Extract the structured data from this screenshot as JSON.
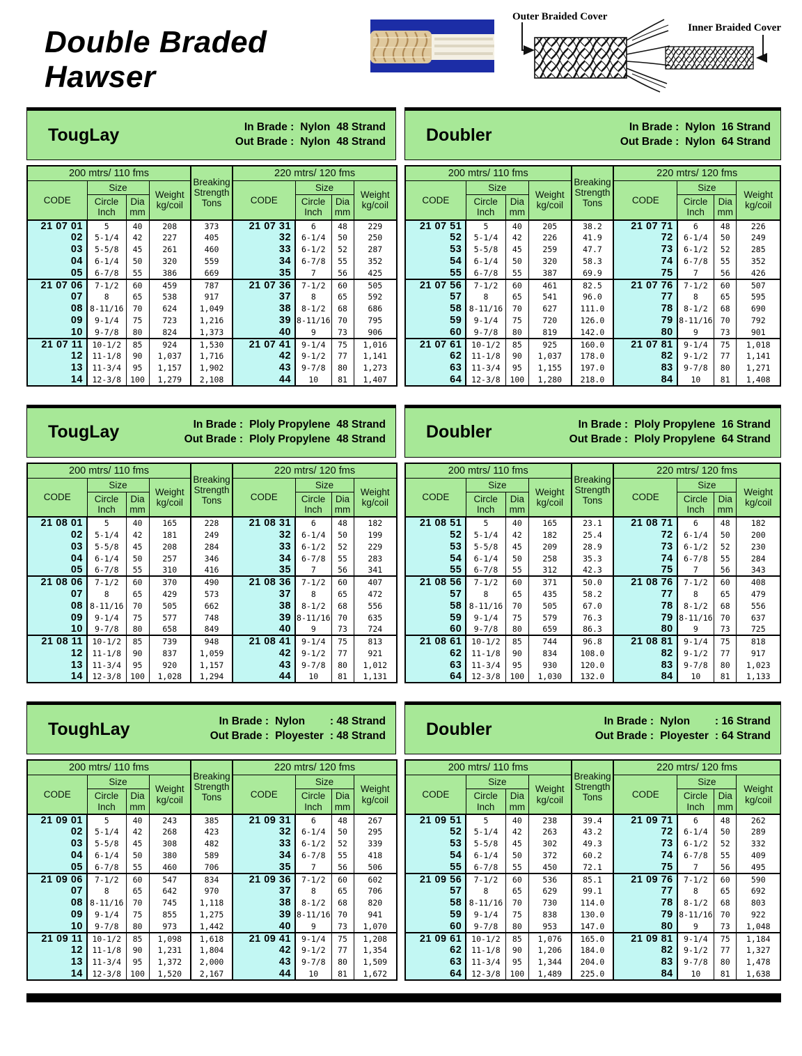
{
  "page_title": "Double Braded Hawser",
  "hero": {
    "outer_label": "Outer Braided Cover",
    "inner_label": "Inner Braided Cover"
  },
  "colors": {
    "band_green": "#a7e897",
    "cell_green": "#abea9b",
    "code_cyan": "#c2f7f3",
    "photo_blue": "#1c2da6"
  },
  "column_headers": {
    "span_200": "200 mtrs/ 110 fms",
    "span_220": "220 mtrs/ 120 fms",
    "code": "CODE",
    "size": "Size",
    "circle_inch": "Circle Inch",
    "dia_mm": "Dia mm",
    "weight": "Weight kg/coil",
    "breaking": "Breaking Strength Tons"
  },
  "row_columns": [
    "code",
    "circle_inch",
    "dia_mm",
    "weight_kg_coil",
    "breaking_strength_tons",
    "code",
    "circle_inch",
    "dia_mm",
    "weight_kg_coil"
  ],
  "tables": [
    {
      "title": "TougLay",
      "in_label": "In Brade :",
      "in_material": "Nylon",
      "in_strand": "48 Strand",
      "out_label": "Out Brade :",
      "out_material": "Nylon",
      "out_strand": "48 Strand",
      "rows": [
        [
          "21 07 01",
          "5",
          "40",
          "208",
          "373",
          "21 07 31",
          "6",
          "48",
          "229"
        ],
        [
          "02",
          "5-1/4",
          "42",
          "227",
          "405",
          "32",
          "6-1/4",
          "50",
          "250"
        ],
        [
          "03",
          "5-5/8",
          "45",
          "261",
          "460",
          "33",
          "6-1/2",
          "52",
          "287"
        ],
        [
          "04",
          "6-1/4",
          "50",
          "320",
          "559",
          "34",
          "6-7/8",
          "55",
          "352"
        ],
        [
          "05",
          "6-7/8",
          "55",
          "386",
          "669",
          "35",
          "7",
          "56",
          "425"
        ],
        [
          "21 07 06",
          "7-1/2",
          "60",
          "459",
          "787",
          "21 07 36",
          "7-1/2",
          "60",
          "505"
        ],
        [
          "07",
          "8",
          "65",
          "538",
          "917",
          "37",
          "8",
          "65",
          "592"
        ],
        [
          "08",
          "8-11/16",
          "70",
          "624",
          "1,049",
          "38",
          "8-1/2",
          "68",
          "686"
        ],
        [
          "09",
          "9-1/4",
          "75",
          "723",
          "1,216",
          "39",
          "8-11/16",
          "70",
          "795"
        ],
        [
          "10",
          "9-7/8",
          "80",
          "824",
          "1,373",
          "40",
          "9",
          "73",
          "906"
        ],
        [
          "21 07 11",
          "10-1/2",
          "85",
          "924",
          "1,530",
          "21 07 41",
          "9-1/4",
          "75",
          "1,016"
        ],
        [
          "12",
          "11-1/8",
          "90",
          "1,037",
          "1,716",
          "42",
          "9-1/2",
          "77",
          "1,141"
        ],
        [
          "13",
          "11-3/4",
          "95",
          "1,157",
          "1,902",
          "43",
          "9-7/8",
          "80",
          "1,273"
        ],
        [
          "14",
          "12-3/8",
          "100",
          "1,279",
          "2,108",
          "44",
          "10",
          "81",
          "1,407"
        ]
      ]
    },
    {
      "title": "Doubler",
      "in_label": "In Brade :",
      "in_material": "Nylon",
      "in_strand": "16 Strand",
      "out_label": "Out Brade :",
      "out_material": "Nylon",
      "out_strand": "64 Strand",
      "rows": [
        [
          "21 07 51",
          "5",
          "40",
          "205",
          "38.2",
          "21 07 71",
          "6",
          "48",
          "226"
        ],
        [
          "52",
          "5-1/4",
          "42",
          "226",
          "41.9",
          "72",
          "6-1/4",
          "50",
          "249"
        ],
        [
          "53",
          "5-5/8",
          "45",
          "259",
          "47.7",
          "73",
          "6-1/2",
          "52",
          "285"
        ],
        [
          "54",
          "6-1/4",
          "50",
          "320",
          "58.3",
          "74",
          "6-7/8",
          "55",
          "352"
        ],
        [
          "55",
          "6-7/8",
          "55",
          "387",
          "69.9",
          "75",
          "7",
          "56",
          "426"
        ],
        [
          "21 07 56",
          "7-1/2",
          "60",
          "461",
          "82.5",
          "21 07 76",
          "7-1/2",
          "60",
          "507"
        ],
        [
          "57",
          "8",
          "65",
          "541",
          "96.0",
          "77",
          "8",
          "65",
          "595"
        ],
        [
          "58",
          "8-11/16",
          "70",
          "627",
          "111.0",
          "78",
          "8-1/2",
          "68",
          "690"
        ],
        [
          "59",
          "9-1/4",
          "75",
          "720",
          "126.0",
          "79",
          "8-11/16",
          "70",
          "792"
        ],
        [
          "60",
          "9-7/8",
          "80",
          "819",
          "142.0",
          "80",
          "9",
          "73",
          "901"
        ],
        [
          "21 07 61",
          "10-1/2",
          "85",
          "925",
          "160.0",
          "21 07 81",
          "9-1/4",
          "75",
          "1,018"
        ],
        [
          "62",
          "11-1/8",
          "90",
          "1,037",
          "178.0",
          "82",
          "9-1/2",
          "77",
          "1,141"
        ],
        [
          "63",
          "11-3/4",
          "95",
          "1,155",
          "197.0",
          "83",
          "9-7/8",
          "80",
          "1,271"
        ],
        [
          "64",
          "12-3/8",
          "100",
          "1,280",
          "218.0",
          "84",
          "10",
          "81",
          "1,408"
        ]
      ]
    },
    {
      "title": "TougLay",
      "in_label": "In Brade :",
      "in_material": "Ploly Propylene",
      "in_strand": "48 Strand",
      "out_label": "Out Brade :",
      "out_material": "Ploly Propylene",
      "out_strand": "48 Strand",
      "rows": [
        [
          "21 08 01",
          "5",
          "40",
          "165",
          "228",
          "21 08 31",
          "6",
          "48",
          "182"
        ],
        [
          "02",
          "5-1/4",
          "42",
          "181",
          "249",
          "32",
          "6-1/4",
          "50",
          "199"
        ],
        [
          "03",
          "5-5/8",
          "45",
          "208",
          "284",
          "33",
          "6-1/2",
          "52",
          "229"
        ],
        [
          "04",
          "6-1/4",
          "50",
          "257",
          "346",
          "34",
          "6-7/8",
          "55",
          "283"
        ],
        [
          "05",
          "6-7/8",
          "55",
          "310",
          "416",
          "35",
          "7",
          "56",
          "341"
        ],
        [
          "21 08 06",
          "7-1/2",
          "60",
          "370",
          "490",
          "21 08 36",
          "7-1/2",
          "60",
          "407"
        ],
        [
          "07",
          "8",
          "65",
          "429",
          "573",
          "37",
          "8",
          "65",
          "472"
        ],
        [
          "08",
          "8-11/16",
          "70",
          "505",
          "662",
          "38",
          "8-1/2",
          "68",
          "556"
        ],
        [
          "09",
          "9-1/4",
          "75",
          "577",
          "748",
          "39",
          "8-11/16",
          "70",
          "635"
        ],
        [
          "10",
          "9-7/8",
          "80",
          "658",
          "849",
          "40",
          "9",
          "73",
          "724"
        ],
        [
          "21 08 11",
          "10-1/2",
          "85",
          "739",
          "948",
          "21 08 41",
          "9-1/4",
          "75",
          "813"
        ],
        [
          "12",
          "11-1/8",
          "90",
          "837",
          "1,059",
          "42",
          "9-1/2",
          "77",
          "921"
        ],
        [
          "13",
          "11-3/4",
          "95",
          "920",
          "1,157",
          "43",
          "9-7/8",
          "80",
          "1,012"
        ],
        [
          "14",
          "12-3/8",
          "100",
          "1,028",
          "1,294",
          "44",
          "10",
          "81",
          "1,131"
        ]
      ]
    },
    {
      "title": "Doubler",
      "in_label": "In Brade :",
      "in_material": "Ploly Propylene",
      "in_strand": "16 Strand",
      "out_label": "Out Brade :",
      "out_material": "Ploly Propylene",
      "out_strand": "64 Strand",
      "rows": [
        [
          "21 08 51",
          "5",
          "40",
          "165",
          "23.1",
          "21 08 71",
          "6",
          "48",
          "182"
        ],
        [
          "52",
          "5-1/4",
          "42",
          "182",
          "25.4",
          "72",
          "6-1/4",
          "50",
          "200"
        ],
        [
          "53",
          "5-5/8",
          "45",
          "209",
          "28.9",
          "73",
          "6-1/2",
          "52",
          "230"
        ],
        [
          "54",
          "6-1/4",
          "50",
          "258",
          "35.3",
          "74",
          "6-7/8",
          "55",
          "284"
        ],
        [
          "55",
          "6-7/8",
          "55",
          "312",
          "42.3",
          "75",
          "7",
          "56",
          "343"
        ],
        [
          "21 08 56",
          "7-1/2",
          "60",
          "371",
          "50.0",
          "21 08 76",
          "7-1/2",
          "60",
          "408"
        ],
        [
          "57",
          "8",
          "65",
          "435",
          "58.2",
          "77",
          "8",
          "65",
          "479"
        ],
        [
          "58",
          "8-11/16",
          "70",
          "505",
          "67.0",
          "78",
          "8-1/2",
          "68",
          "556"
        ],
        [
          "59",
          "9-1/4",
          "75",
          "579",
          "76.3",
          "79",
          "8-11/16",
          "70",
          "637"
        ],
        [
          "60",
          "9-7/8",
          "80",
          "659",
          "86.3",
          "80",
          "9",
          "73",
          "725"
        ],
        [
          "21 08 61",
          "10-1/2",
          "85",
          "744",
          "96.8",
          "21 08 81",
          "9-1/4",
          "75",
          "818"
        ],
        [
          "62",
          "11-1/8",
          "90",
          "834",
          "108.0",
          "82",
          "9-1/2",
          "77",
          "917"
        ],
        [
          "63",
          "11-3/4",
          "95",
          "930",
          "120.0",
          "83",
          "9-7/8",
          "80",
          "1,023"
        ],
        [
          "64",
          "12-3/8",
          "100",
          "1,030",
          "132.0",
          "84",
          "10",
          "81",
          "1,133"
        ]
      ]
    },
    {
      "title": "ToughLay",
      "in_label": "In Brade :",
      "in_material": "Nylon",
      "in_strand": ": 48 Strand",
      "out_label": "Out Brade :",
      "out_material": "Ployester",
      "out_strand": ": 48 Strand",
      "rows": [
        [
          "21 09 01",
          "5",
          "40",
          "243",
          "385",
          "21 09 31",
          "6",
          "48",
          "267"
        ],
        [
          "02",
          "5-1/4",
          "42",
          "268",
          "423",
          "32",
          "6-1/4",
          "50",
          "295"
        ],
        [
          "03",
          "5-5/8",
          "45",
          "308",
          "482",
          "33",
          "6-1/2",
          "52",
          "339"
        ],
        [
          "04",
          "6-1/4",
          "50",
          "380",
          "589",
          "34",
          "6-7/8",
          "55",
          "418"
        ],
        [
          "05",
          "6-7/8",
          "55",
          "460",
          "706",
          "35",
          "7",
          "56",
          "506"
        ],
        [
          "21 09 06",
          "7-1/2",
          "60",
          "547",
          "834",
          "21 09 36",
          "7-1/2",
          "60",
          "602"
        ],
        [
          "07",
          "8",
          "65",
          "642",
          "970",
          "37",
          "8",
          "65",
          "706"
        ],
        [
          "08",
          "8-11/16",
          "70",
          "745",
          "1,118",
          "38",
          "8-1/2",
          "68",
          "820"
        ],
        [
          "09",
          "9-1/4",
          "75",
          "855",
          "1,275",
          "39",
          "8-11/16",
          "70",
          "941"
        ],
        [
          "10",
          "9-7/8",
          "80",
          "973",
          "1,442",
          "40",
          "9",
          "73",
          "1,070"
        ],
        [
          "21 09 11",
          "10-1/2",
          "85",
          "1,098",
          "1,618",
          "21 09 41",
          "9-1/4",
          "75",
          "1,208"
        ],
        [
          "12",
          "11-1/8",
          "90",
          "1,231",
          "1,804",
          "42",
          "9-1/2",
          "77",
          "1,354"
        ],
        [
          "13",
          "11-3/4",
          "95",
          "1,372",
          "2,000",
          "43",
          "9-7/8",
          "80",
          "1,509"
        ],
        [
          "14",
          "12-3/8",
          "100",
          "1,520",
          "2,167",
          "44",
          "10",
          "81",
          "1,672"
        ]
      ]
    },
    {
      "title": "Doubler",
      "in_label": "In Brade :",
      "in_material": "Nylon",
      "in_strand": ": 16 Strand",
      "out_label": "Out Brade :",
      "out_material": "Ployester",
      "out_strand": ": 64 Strand",
      "rows": [
        [
          "21 09 51",
          "5",
          "40",
          "238",
          "39.4",
          "21 09 71",
          "6",
          "48",
          "262"
        ],
        [
          "52",
          "5-1/4",
          "42",
          "263",
          "43.2",
          "72",
          "6-1/4",
          "50",
          "289"
        ],
        [
          "53",
          "5-5/8",
          "45",
          "302",
          "49.3",
          "73",
          "6-1/2",
          "52",
          "332"
        ],
        [
          "54",
          "6-1/4",
          "50",
          "372",
          "60.2",
          "74",
          "6-7/8",
          "55",
          "409"
        ],
        [
          "55",
          "6-7/8",
          "55",
          "450",
          "72.1",
          "75",
          "7",
          "56",
          "495"
        ],
        [
          "21 09 56",
          "7-1/2",
          "60",
          "536",
          "85.1",
          "21 09 76",
          "7-1/2",
          "60",
          "590"
        ],
        [
          "57",
          "8",
          "65",
          "629",
          "99.1",
          "77",
          "8",
          "65",
          "692"
        ],
        [
          "58",
          "8-11/16",
          "70",
          "730",
          "114.0",
          "78",
          "8-1/2",
          "68",
          "803"
        ],
        [
          "59",
          "9-1/4",
          "75",
          "838",
          "130.0",
          "79",
          "8-11/16",
          "70",
          "922"
        ],
        [
          "60",
          "9-7/8",
          "80",
          "953",
          "147.0",
          "80",
          "9",
          "73",
          "1,048"
        ],
        [
          "21 09 61",
          "10-1/2",
          "85",
          "1,076",
          "165.0",
          "21 09 81",
          "9-1/4",
          "75",
          "1,184"
        ],
        [
          "62",
          "11-1/8",
          "90",
          "1,206",
          "184.0",
          "82",
          "9-1/2",
          "77",
          "1,327"
        ],
        [
          "63",
          "11-3/4",
          "95",
          "1,344",
          "204.0",
          "83",
          "9-7/8",
          "80",
          "1,478"
        ],
        [
          "64",
          "12-3/8",
          "100",
          "1,489",
          "225.0",
          "84",
          "10",
          "81",
          "1,638"
        ]
      ]
    }
  ]
}
